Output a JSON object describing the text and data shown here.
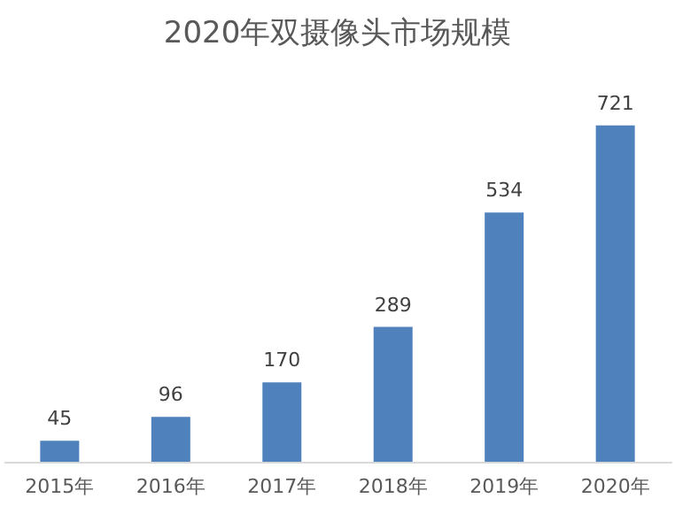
{
  "chart_data": {
    "type": "bar",
    "title": "2020年双摄像头市场规模",
    "categories": [
      "2015年",
      "2016年",
      "2017年",
      "2018年",
      "2019年",
      "2020年"
    ],
    "values": [
      45,
      96,
      170,
      289,
      534,
      721
    ],
    "color": "#4f81bd",
    "data_labels": true
  }
}
